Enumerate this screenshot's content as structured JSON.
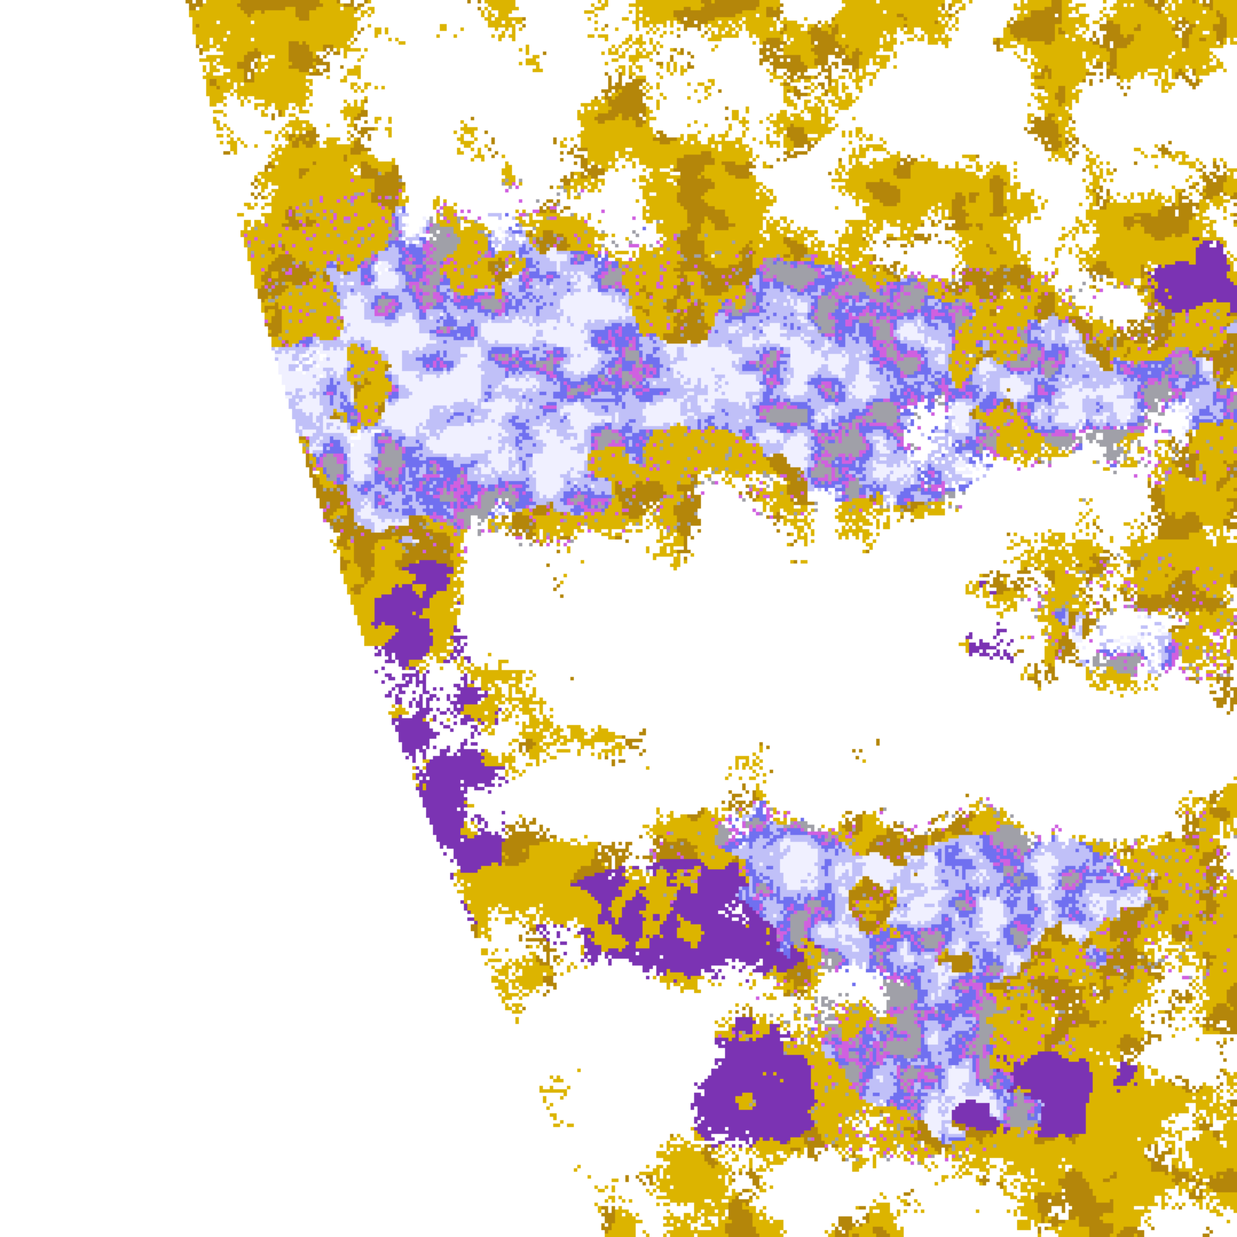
{
  "map": {
    "type": "satellite cloud classification image",
    "background": "#ffffff",
    "palette": {
      "clear": "#ffffff",
      "gold": "#dcb400",
      "dark_gold": "#b4860a",
      "purple": "#7b33b3",
      "magenta": "#d060e0",
      "blue": "#7070f0",
      "lavender": "#c0c0f8",
      "pale": "#f0f0ff",
      "gray": "#a0a0a8"
    }
  }
}
